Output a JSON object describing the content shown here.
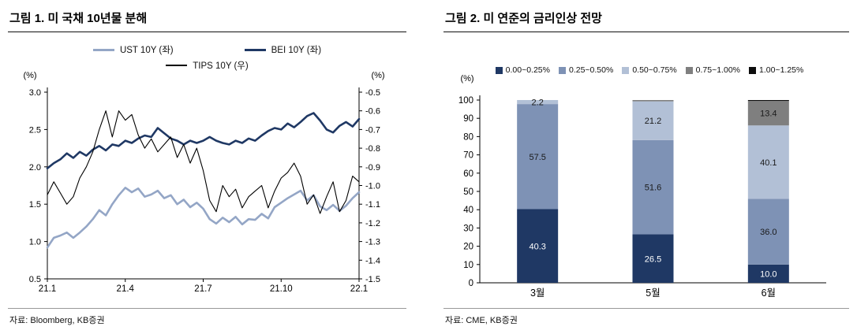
{
  "figures": [
    {
      "title": "그림 1. 미 국채 10년물 분해",
      "source": "자료: Bloomberg, KB증권"
    },
    {
      "title": "그림 2. 미 연준의 금리인상 전망",
      "source": "자료: CME, KB증권"
    }
  ],
  "chart_data": [
    {
      "type": "line",
      "title": "그림 1. 미 국채 10년물 분해",
      "x_ticks": [
        "21.1",
        "21.4",
        "21.7",
        "21.10",
        "22.1"
      ],
      "x_tick_months": [
        0,
        3,
        6,
        9,
        12
      ],
      "x_range_months": [
        0,
        12
      ],
      "left_axis": {
        "label": "(%)",
        "min": 0.5,
        "max": 3.0,
        "ticks": [
          "3.0",
          "2.5",
          "2.0",
          "1.5",
          "1.0",
          "0.5"
        ]
      },
      "right_axis": {
        "label": "(%)",
        "min": -1.5,
        "max": -0.5,
        "ticks": [
          "-0.5",
          "-0.6",
          "-0.7",
          "-0.8",
          "-0.9",
          "-1.0",
          "-1.1",
          "-1.2",
          "-1.3",
          "-1.4",
          "-1.5"
        ]
      },
      "series": [
        {
          "id": "ust-10y",
          "name": "UST 10Y (좌)",
          "axis": "left",
          "color": "#94a6c6",
          "width": 2.6,
          "values": [
            0.92,
            1.05,
            1.08,
            1.12,
            1.05,
            1.12,
            1.2,
            1.3,
            1.42,
            1.35,
            1.5,
            1.62,
            1.72,
            1.66,
            1.71,
            1.6,
            1.63,
            1.68,
            1.58,
            1.62,
            1.5,
            1.56,
            1.46,
            1.52,
            1.44,
            1.3,
            1.24,
            1.32,
            1.26,
            1.33,
            1.23,
            1.3,
            1.29,
            1.37,
            1.31,
            1.46,
            1.52,
            1.58,
            1.63,
            1.68,
            1.55,
            1.62,
            1.47,
            1.42,
            1.49,
            1.41,
            1.48,
            1.58,
            1.66
          ]
        },
        {
          "id": "bei-10y",
          "name": "BEI 10Y (좌)",
          "axis": "left",
          "color": "#1f3864",
          "width": 2.6,
          "values": [
            1.98,
            2.05,
            2.1,
            2.18,
            2.12,
            2.2,
            2.15,
            2.23,
            2.28,
            2.22,
            2.3,
            2.28,
            2.35,
            2.32,
            2.38,
            2.42,
            2.4,
            2.52,
            2.45,
            2.38,
            2.35,
            2.3,
            2.35,
            2.32,
            2.35,
            2.4,
            2.35,
            2.32,
            2.3,
            2.35,
            2.32,
            2.38,
            2.35,
            2.42,
            2.48,
            2.52,
            2.5,
            2.58,
            2.53,
            2.6,
            2.68,
            2.72,
            2.62,
            2.5,
            2.46,
            2.55,
            2.6,
            2.54,
            2.64
          ]
        },
        {
          "id": "tips-10y",
          "name": "TIPS 10Y (우)",
          "axis": "right",
          "color": "#000000",
          "width": 1.1,
          "values": [
            -1.05,
            -0.98,
            -1.04,
            -1.1,
            -1.06,
            -0.96,
            -0.9,
            -0.82,
            -0.7,
            -0.6,
            -0.74,
            -0.6,
            -0.65,
            -0.62,
            -0.73,
            -0.8,
            -0.75,
            -0.82,
            -0.78,
            -0.74,
            -0.85,
            -0.78,
            -0.88,
            -0.8,
            -0.92,
            -1.08,
            -1.14,
            -1.0,
            -1.06,
            -1.02,
            -1.12,
            -1.06,
            -1.03,
            -1.0,
            -1.12,
            -1.03,
            -0.96,
            -0.93,
            -0.88,
            -0.95,
            -1.1,
            -1.05,
            -1.15,
            -1.06,
            -0.98,
            -1.14,
            -1.08,
            -0.95,
            -0.98
          ]
        }
      ]
    },
    {
      "type": "bar",
      "stacked": true,
      "title": "그림 2. 미 연준의 금리인상 전망",
      "categories": [
        "3월",
        "5월",
        "6월"
      ],
      "ylabel": "(%)",
      "ylim": [
        0,
        100
      ],
      "yticks": [
        0,
        10,
        20,
        30,
        40,
        50,
        60,
        70,
        80,
        90,
        100
      ],
      "series": [
        {
          "id": "band-000-025",
          "name": "0.00~0.25%",
          "color": "#1f3864",
          "label_color": "#ffffff",
          "values": [
            40.3,
            26.5,
            10.0
          ],
          "labels": [
            "40.3",
            "26.5",
            "10.0"
          ]
        },
        {
          "id": "band-025-050",
          "name": "0.25~0.50%",
          "color": "#7e92b5",
          "label_color": "#1a1a1a",
          "values": [
            57.5,
            51.6,
            36.0
          ],
          "labels": [
            "57.5",
            "51.6",
            "36.0"
          ]
        },
        {
          "id": "band-050-075",
          "name": "0.50~0.75%",
          "color": "#b2c0d6",
          "label_color": "#1a1a1a",
          "values": [
            2.2,
            21.2,
            40.1
          ],
          "labels": [
            "2.2",
            "21.2",
            "40.1"
          ]
        },
        {
          "id": "band-075-100",
          "name": "0.75~1.00%",
          "color": "#7f7f7f",
          "label_color": "#1a1a1a",
          "values": [
            0,
            0.7,
            13.4
          ],
          "labels": [
            "",
            "",
            "13.4"
          ]
        },
        {
          "id": "band-100-125",
          "name": "1.00~1.25%",
          "color": "#0d0d0d",
          "label_color": "#ffffff",
          "values": [
            0,
            0,
            0.5
          ],
          "labels": [
            "",
            "",
            ""
          ]
        }
      ]
    }
  ]
}
